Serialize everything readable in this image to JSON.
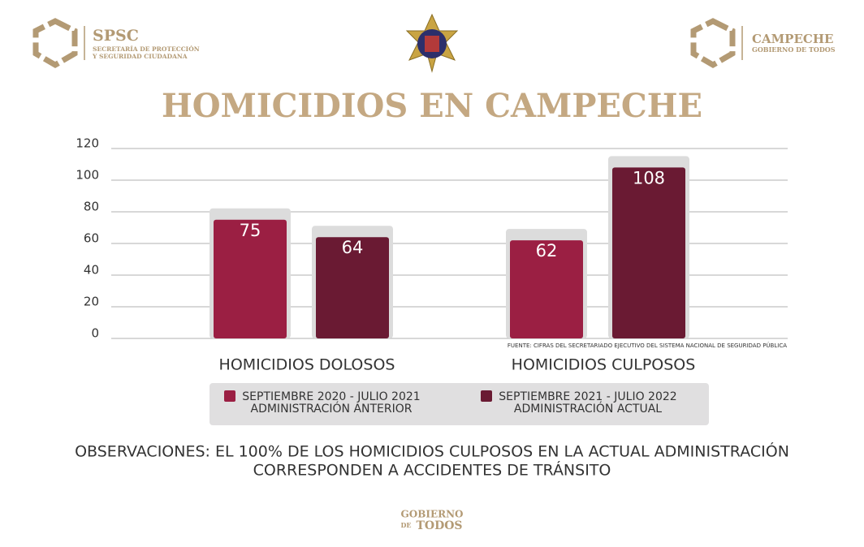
{
  "header": {
    "left_logo": {
      "name": "SPSC",
      "line1": "SECRETARÍA DE PROTECCIÓN",
      "line2": "Y SEGURIDAD CIUDADANA"
    },
    "right_logo": {
      "name": "CAMPECHE",
      "tagline": "GOBIERNO DE TODOS"
    }
  },
  "chart_data": {
    "type": "bar",
    "title": "HOMICIDIOS EN CAMPECHE",
    "categories": [
      "HOMICIDIOS DOLOSOS",
      "HOMICIDIOS CULPOSOS"
    ],
    "series": [
      {
        "name": "SEPTIEMBRE 2020 - JULIO 2021",
        "administration": "ADMINISTRACIÓN ANTERIOR",
        "color": "#9b1f43",
        "values": [
          75,
          62
        ]
      },
      {
        "name": "SEPTIEMBRE 2021 - JULIO 2022",
        "administration": "ADMINISTRACIÓN ACTUAL",
        "color": "#6a1a33",
        "values": [
          64,
          108
        ]
      }
    ],
    "ylim": [
      0,
      120
    ],
    "yticks": [
      0,
      20,
      40,
      60,
      80,
      100,
      120
    ],
    "grid": true,
    "source": "FUENTE: CIFRAS DEL SECRETARIADO EJECUTIVO DEL SISTEMA NACIONAL DE SEGURIDAD PÚBLICA"
  },
  "observations": {
    "line1": "OBSERVACIONES: EL 100% DE LOS HOMICIDIOS CULPOSOS EN LA ACTUAL ADMINISTRACIÓN",
    "line2": "CORRESPONDEN A ACCIDENTES DE TRÁNSITO"
  },
  "footer": {
    "line1": "GOBIERNO",
    "line2": "DE",
    "line3": "TODOS"
  }
}
